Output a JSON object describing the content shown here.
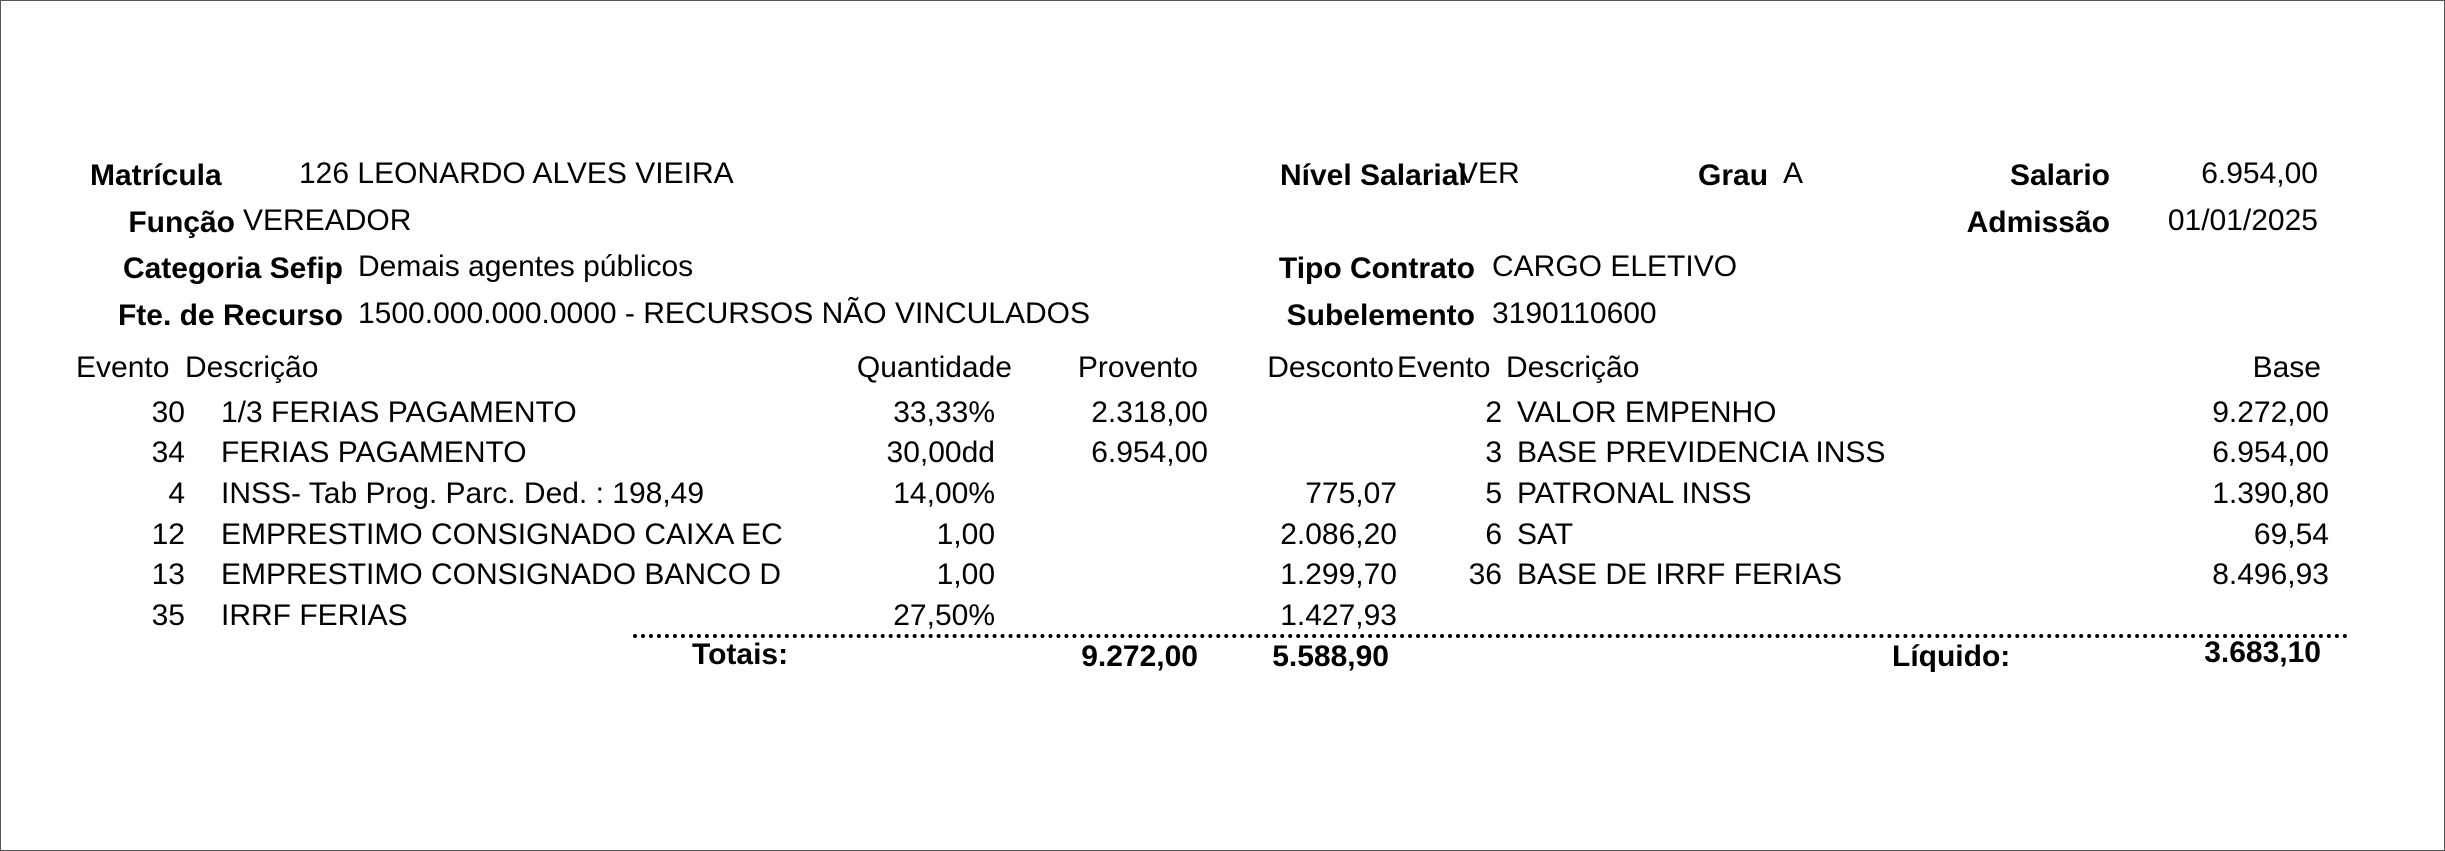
{
  "header": {
    "matricula_label": "Matrícula",
    "matricula_value": "126 LEONARDO ALVES VIEIRA",
    "funcao_label": "Função",
    "funcao_value": "VEREADOR",
    "categoria_label": "Categoria Sefip",
    "categoria_value": "Demais agentes públicos",
    "fonte_label": "Fte. de Recurso",
    "fonte_value": "1500.000.000.0000 - RECURSOS NÃO VINCULADOS",
    "nivel_label": "Nível Salarial",
    "nivel_value": "VER",
    "grau_label": "Grau",
    "grau_value": "A",
    "salario_label": "Salario",
    "salario_value": "6.954,00",
    "admissao_label": "Admissão",
    "admissao_value": "01/01/2025",
    "tipo_contrato_label": "Tipo Contrato",
    "tipo_contrato_value": "CARGO ELETIVO",
    "subelemento_label": "Subelemento",
    "subelemento_value": "3190110600"
  },
  "columns": {
    "evento": "Evento",
    "descricao": "Descrição",
    "quantidade": "Quantidade",
    "provento": "Provento",
    "desconto": "Desconto",
    "evento2": "Evento",
    "descricao2": "Descrição",
    "base": "Base"
  },
  "events": [
    {
      "evento": "30",
      "descricao": "1/3 FERIAS PAGAMENTO",
      "quantidade": "33,33%",
      "provento": "2.318,00",
      "desconto": ""
    },
    {
      "evento": "34",
      "descricao": "FERIAS PAGAMENTO",
      "quantidade": "30,00dd",
      "provento": "6.954,00",
      "desconto": ""
    },
    {
      "evento": "4",
      "descricao": "INSS- Tab Prog. Parc. Ded. : 198,49",
      "quantidade": "14,00%",
      "provento": "",
      "desconto": "775,07"
    },
    {
      "evento": "12",
      "descricao": "EMPRESTIMO CONSIGNADO CAIXA EC",
      "quantidade": "1,00",
      "provento": "",
      "desconto": "2.086,20"
    },
    {
      "evento": "13",
      "descricao": "EMPRESTIMO CONSIGNADO BANCO D",
      "quantidade": "1,00",
      "provento": "",
      "desconto": "1.299,70"
    },
    {
      "evento": "35",
      "descricao": "IRRF FERIAS",
      "quantidade": "27,50%",
      "provento": "",
      "desconto": "1.427,93"
    }
  ],
  "bases": [
    {
      "evento": "2",
      "descricao": "VALOR EMPENHO",
      "base": "9.272,00"
    },
    {
      "evento": "3",
      "descricao": "BASE PREVIDENCIA INSS",
      "base": "6.954,00"
    },
    {
      "evento": "5",
      "descricao": "PATRONAL INSS",
      "base": "1.390,80"
    },
    {
      "evento": "6",
      "descricao": "SAT",
      "base": "69,54"
    },
    {
      "evento": "36",
      "descricao": "BASE DE IRRF FERIAS",
      "base": "8.496,93"
    }
  ],
  "totals": {
    "label": "Totais:",
    "proventos": "9.272,00",
    "descontos": "5.588,90",
    "liquido_label": "Líquido:",
    "liquido": "3.683,10"
  }
}
